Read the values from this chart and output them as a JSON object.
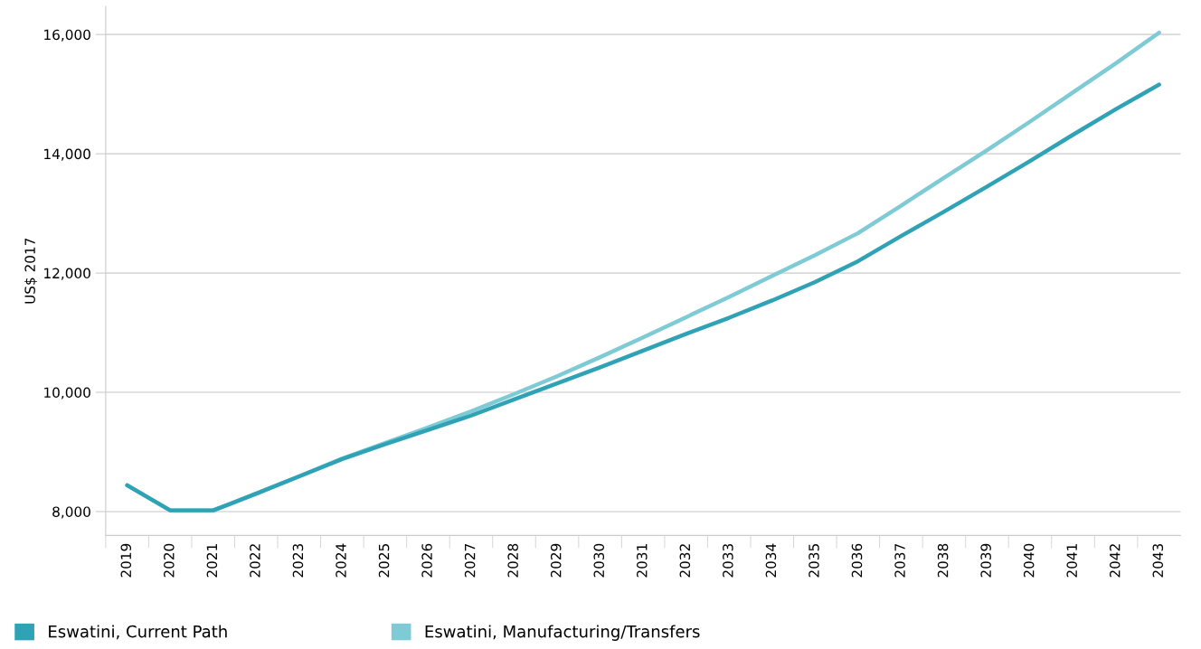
{
  "chart_data": {
    "type": "line",
    "ylabel": "US$ 2017",
    "categories": [
      "2019",
      "2020",
      "2021",
      "2022",
      "2023",
      "2024",
      "2025",
      "2026",
      "2027",
      "2028",
      "2029",
      "2030",
      "2031",
      "2032",
      "2033",
      "2034",
      "2035",
      "2036",
      "2037",
      "2038",
      "2039",
      "2040",
      "2041",
      "2042",
      "2043"
    ],
    "series": [
      {
        "name": "Eswatini, Current Path",
        "color": "#2fa3b5",
        "values": [
          8440,
          8020,
          8020,
          8300,
          8590,
          8880,
          9130,
          9370,
          9610,
          9880,
          10150,
          10420,
          10700,
          10980,
          11250,
          11540,
          11850,
          12200,
          12620,
          13030,
          13450,
          13880,
          14320,
          14750,
          15160
        ]
      },
      {
        "name": "Eswatini, Manufacturing/Transfers",
        "color": "#7ecbd6",
        "values": [
          8440,
          8020,
          8020,
          8300,
          8590,
          8890,
          9150,
          9410,
          9680,
          9970,
          10270,
          10590,
          10920,
          11260,
          11600,
          11950,
          12300,
          12670,
          13130,
          13600,
          14060,
          14540,
          15030,
          15520,
          16030
        ]
      }
    ],
    "ylim": [
      7600,
      16470
    ],
    "yticks": [
      {
        "value": 8000,
        "label": "8,000"
      },
      {
        "value": 10000,
        "label": "10,000"
      },
      {
        "value": 12000,
        "label": "12,000"
      },
      {
        "value": 14000,
        "label": "14,000"
      },
      {
        "value": 16000,
        "label": "16,000"
      }
    ],
    "grid": "y",
    "legend": "bottom",
    "marker": "none",
    "line_style": "solid"
  }
}
